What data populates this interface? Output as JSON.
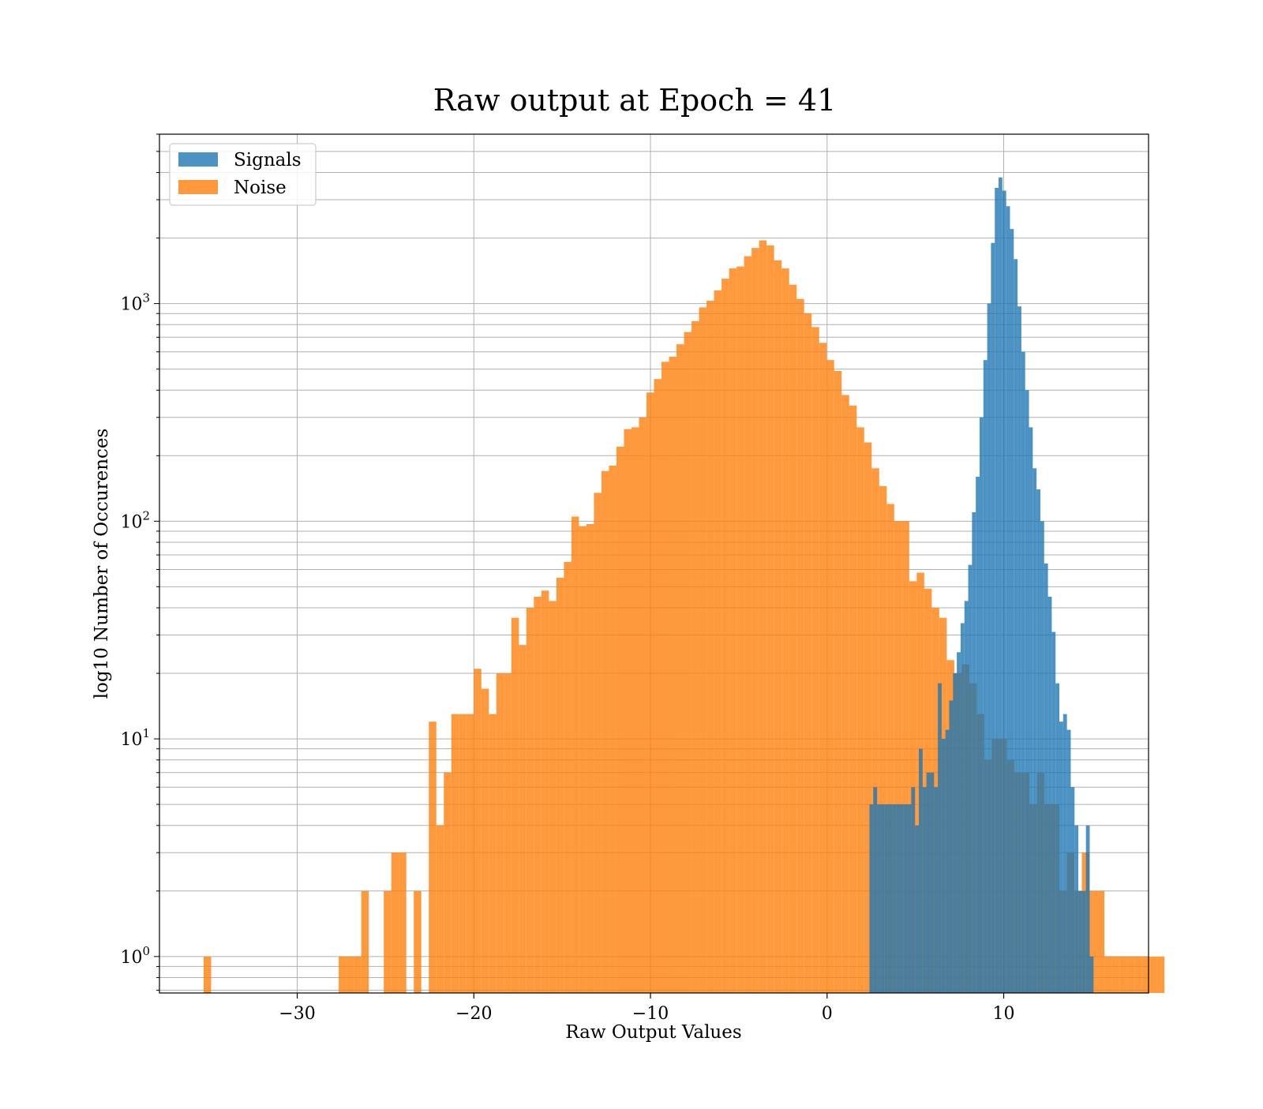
{
  "chart_data": {
    "type": "bar",
    "title": "Raw output at Epoch = 41",
    "xlabel": "Raw Output Values",
    "ylabel": "log10 Number of Occurences",
    "xlim": [
      -37.8,
      18.2
    ],
    "ylim": [
      0.68,
      6000
    ],
    "yscale": "log",
    "grid": true,
    "legend_position": "top-left",
    "x_ticks": [
      {
        "value": -30,
        "label": "−30"
      },
      {
        "value": -20,
        "label": "−20"
      },
      {
        "value": -10,
        "label": "−10"
      },
      {
        "value": 0,
        "label": "0"
      },
      {
        "value": 10,
        "label": "10"
      }
    ],
    "y_ticks": [
      {
        "value": 1,
        "base": "10",
        "exp": "0"
      },
      {
        "value": 10,
        "base": "10",
        "exp": "1"
      },
      {
        "value": 100,
        "base": "10",
        "exp": "2"
      },
      {
        "value": 1000,
        "base": "10",
        "exp": "3"
      }
    ],
    "series": [
      {
        "name": "Noise",
        "color": "#ff7f0e",
        "opacity": 0.8,
        "bin_start": -35.3,
        "bin_width": 0.425,
        "values": [
          1,
          0,
          0,
          0,
          0,
          0,
          0,
          0,
          0,
          0,
          0,
          0,
          0,
          0,
          0,
          0,
          0,
          0,
          1,
          1,
          1,
          2,
          0,
          0,
          2,
          3,
          3,
          0,
          2,
          0,
          12,
          4,
          7,
          13,
          13,
          13,
          21,
          17,
          13,
          20,
          20,
          36,
          27,
          40,
          45,
          48,
          43,
          55,
          65,
          105,
          95,
          97,
          135,
          170,
          180,
          220,
          265,
          270,
          300,
          390,
          450,
          540,
          570,
          650,
          740,
          830,
          960,
          1030,
          1150,
          1300,
          1450,
          1480,
          1650,
          1800,
          1950,
          1850,
          1580,
          1450,
          1220,
          1050,
          900,
          780,
          660,
          550,
          490,
          380,
          340,
          270,
          230,
          175,
          145,
          120,
          100,
          100,
          53,
          58,
          49,
          40,
          36,
          23,
          20,
          22,
          18,
          13,
          8,
          10,
          10,
          8,
          7,
          7,
          5,
          7,
          5,
          5,
          2,
          3,
          2,
          3,
          2,
          2,
          1,
          1,
          1,
          1,
          1,
          1,
          1,
          1
        ]
      },
      {
        "name": "Signals",
        "color": "#1f77b4",
        "opacity": 0.8,
        "bin_start": 2.4,
        "bin_width": 0.215,
        "values": [
          5,
          6,
          5,
          5,
          5,
          5,
          5,
          5,
          5,
          5,
          5,
          6,
          4,
          9,
          6,
          7,
          7,
          6,
          18,
          10,
          11,
          15,
          20,
          25,
          34,
          43,
          63,
          110,
          160,
          300,
          550,
          1000,
          1900,
          3400,
          3800,
          3300,
          2800,
          2200,
          1600,
          970,
          600,
          400,
          270,
          175,
          140,
          100,
          64,
          45,
          31,
          18,
          12,
          13,
          11,
          6,
          4,
          2,
          2,
          4,
          1
        ]
      }
    ]
  }
}
